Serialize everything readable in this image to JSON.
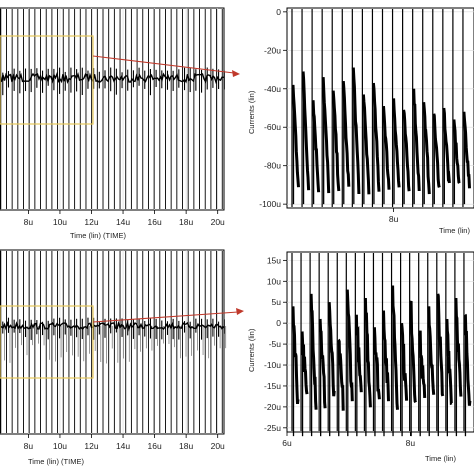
{
  "chart_data": [
    {
      "id": "top-left",
      "type": "line",
      "title": "",
      "xlabel": "Time (lin) (TIME)",
      "ylabel": "",
      "xlim": [
        6.2,
        20.4
      ],
      "x_ticks": [
        "8u",
        "10u",
        "12u",
        "14u",
        "16u",
        "18u",
        "20u"
      ],
      "x_tick_values": [
        8,
        10,
        12,
        14,
        16,
        18,
        20
      ],
      "spike_period": 0.36,
      "grid": true,
      "zoom_window": {
        "x": [
          6.2,
          12.2
        ]
      }
    },
    {
      "id": "top-right",
      "type": "line",
      "title": "",
      "xlabel": "Time (lin)",
      "ylabel": "Currents (lin)",
      "ylim": [
        -102,
        2
      ],
      "y_ticks": [
        "0",
        "-20u",
        "-40u",
        "-60u",
        "-80u",
        "-100u"
      ],
      "y_tick_values": [
        0,
        -20,
        -40,
        -60,
        -80,
        -100
      ],
      "x_ticks": [
        "8u"
      ],
      "grid": true,
      "spikes": {
        "count": 18,
        "levels": [
          -38,
          -31,
          -46,
          -34,
          -41,
          -36,
          -29,
          -43,
          -37,
          -49,
          -45,
          -51,
          -40,
          -47,
          -53,
          -50,
          -56,
          -52
        ]
      }
    },
    {
      "id": "bottom-left",
      "type": "line",
      "title": "",
      "xlabel": "Time (lin) (TIME)",
      "ylabel": "",
      "xlim": [
        6.2,
        20.4
      ],
      "x_ticks": [
        "8u",
        "10u",
        "12u",
        "14u",
        "16u",
        "18u",
        "20u"
      ],
      "x_tick_values": [
        8,
        10,
        12,
        14,
        16,
        18,
        20
      ],
      "spike_period": 0.36,
      "grid": true,
      "zoom_window": {
        "x": [
          6.2,
          12.2
        ]
      }
    },
    {
      "id": "bottom-right",
      "type": "line",
      "title": "",
      "xlabel": "Time (lin)",
      "ylabel": "Currents (lin)",
      "ylim": [
        -26,
        17
      ],
      "y_ticks": [
        "15u",
        "10u",
        "5u",
        "0",
        "-5u",
        "-10u",
        "-15u",
        "-20u",
        "-25u"
      ],
      "y_tick_values": [
        15,
        10,
        5,
        0,
        -5,
        -10,
        -15,
        -20,
        -25
      ],
      "x_ticks": [
        "6u",
        "8u"
      ],
      "grid": true,
      "spikes": {
        "count": 20,
        "levels": [
          4,
          -2,
          7,
          1,
          5,
          -4,
          8,
          2,
          6,
          -1,
          3,
          9,
          0,
          5,
          -3,
          4,
          7,
          1,
          6,
          2
        ]
      }
    }
  ],
  "colors": {
    "zoom_box": "#e6c85a",
    "arrow": "#c0392b",
    "trace": "#000000",
    "grid": "#cccccc"
  }
}
